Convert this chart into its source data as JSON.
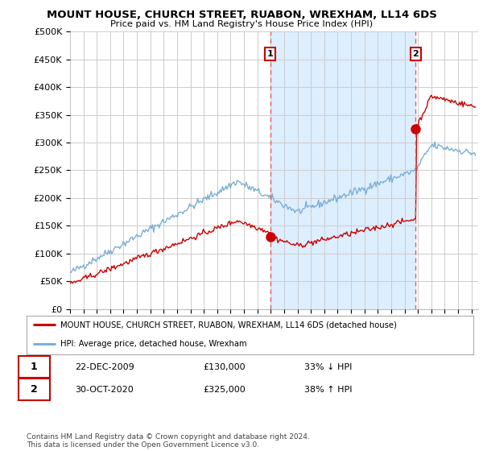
{
  "title": "MOUNT HOUSE, CHURCH STREET, RUABON, WREXHAM, LL14 6DS",
  "subtitle": "Price paid vs. HM Land Registry's House Price Index (HPI)",
  "ylabel_ticks": [
    "£0",
    "£50K",
    "£100K",
    "£150K",
    "£200K",
    "£250K",
    "£300K",
    "£350K",
    "£400K",
    "£450K",
    "£500K"
  ],
  "ytick_values": [
    0,
    50000,
    100000,
    150000,
    200000,
    250000,
    300000,
    350000,
    400000,
    450000,
    500000
  ],
  "ylim": [
    0,
    500000
  ],
  "xlim_start": 1995.0,
  "xlim_end": 2025.5,
  "hpi_color": "#7bafd4",
  "price_color": "#cc0000",
  "vline_color": "#e06060",
  "shade_color": "#ddeeff",
  "transaction1_x": 2009.97,
  "transaction1_y": 130000,
  "transaction2_x": 2020.83,
  "transaction2_y": 325000,
  "annotation1_label": "1",
  "annotation2_label": "2",
  "legend_property_label": "MOUNT HOUSE, CHURCH STREET, RUABON, WREXHAM, LL14 6DS (detached house)",
  "legend_hpi_label": "HPI: Average price, detached house, Wrexham",
  "table_row1": [
    "1",
    "22-DEC-2009",
    "£130,000",
    "33% ↓ HPI"
  ],
  "table_row2": [
    "2",
    "30-OCT-2020",
    "£325,000",
    "38% ↑ HPI"
  ],
  "footer": "Contains HM Land Registry data © Crown copyright and database right 2024.\nThis data is licensed under the Open Government Licence v3.0.",
  "background_color": "#ffffff",
  "grid_color": "#cccccc"
}
